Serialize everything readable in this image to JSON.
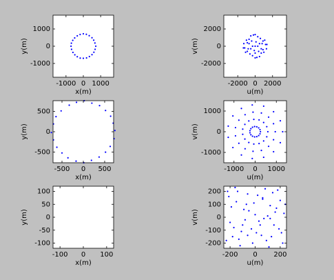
{
  "chart_data": [
    {
      "type": "scatter",
      "xlabel": "x(m)",
      "ylabel": "y(m)",
      "color": "#0000ff",
      "xlim": [
        -1750,
        1750
      ],
      "ylim": [
        -1800,
        1800
      ],
      "xticks": [
        -1000,
        0,
        1000
      ],
      "yticks": [
        -1000,
        0,
        1000
      ],
      "x": [
        720,
        670,
        600,
        500,
        340,
        175,
        0,
        -185,
        -350,
        -500,
        -610,
        -690,
        -710,
        -680,
        -600,
        -490,
        -350,
        -180,
        0,
        185,
        350,
        500,
        610,
        680
      ],
      "y": [
        0,
        185,
        350,
        490,
        610,
        690,
        720,
        680,
        600,
        480,
        340,
        175,
        0,
        -180,
        -360,
        -500,
        -610,
        -690,
        -700,
        -680,
        -600,
        -490,
        -350,
        -180
      ]
    },
    {
      "type": "scatter",
      "xlabel": "u(m)",
      "ylabel": "v(m)",
      "color": "#0000ff",
      "xlim": [
        -3600,
        3600
      ],
      "ylim": [
        -3600,
        3600
      ],
      "xticks": [
        -2000,
        0,
        2000
      ],
      "yticks": [
        -2000,
        0,
        2000
      ],
      "x": [
        0,
        500,
        -500,
        900,
        -900,
        1200,
        -1200,
        300,
        -300,
        700,
        -700,
        1000,
        -1000,
        200,
        -200,
        600,
        -600,
        1300,
        -1300,
        0,
        0,
        400,
        -400,
        800,
        -800,
        1100,
        -1100,
        100,
        -100,
        500,
        -500,
        900,
        -900,
        0,
        300,
        -300,
        700,
        -700,
        1350,
        -1350
      ],
      "y": [
        0,
        300,
        -300,
        600,
        -600,
        200,
        -200,
        1100,
        -1100,
        -800,
        800,
        -700,
        700,
        -1300,
        1300,
        900,
        -900,
        -300,
        300,
        1350,
        -1350,
        -600,
        600,
        300,
        -300,
        700,
        -700,
        500,
        -500,
        -1200,
        1200,
        -400,
        400,
        -800,
        0,
        0,
        -300,
        300,
        200,
        -200
      ]
    },
    {
      "type": "scatter",
      "xlabel": "x(m)",
      "ylabel": "y(m)",
      "color": "#0000ff",
      "xlim": [
        -710,
        710
      ],
      "ylim": [
        -760,
        760
      ],
      "xticks": [
        -500,
        0,
        500
      ],
      "yticks": [
        -500,
        0,
        500
      ],
      "x": [
        740,
        700,
        640,
        520,
        380,
        200,
        20,
        -160,
        -330,
        -520,
        -640,
        -700,
        -750,
        -700,
        -620,
        -500,
        -360,
        -170,
        10,
        190,
        370,
        520,
        630,
        720
      ],
      "y": [
        30,
        210,
        380,
        520,
        640,
        700,
        760,
        720,
        650,
        510,
        370,
        190,
        -20,
        -200,
        -380,
        -520,
        -640,
        -720,
        -760,
        -700,
        -620,
        -500,
        -360,
        -170
      ]
    },
    {
      "type": "scatter",
      "xlabel": "u(m)",
      "ylabel": "v(m)",
      "color": "#0000ff",
      "xlim": [
        -1480,
        1480
      ],
      "ylim": [
        -1500,
        1500
      ],
      "xticks": [
        -1000,
        0,
        1000
      ],
      "yticks": [
        -1000,
        0,
        1000
      ],
      "x": [
        1300,
        1188,
        870,
        402,
        -137,
        -650,
        -1052,
        -1271,
        -1271,
        -1052,
        -650,
        -137,
        402,
        870,
        1188,
        950,
        868,
        636,
        294,
        -100,
        -475,
        -769,
        -929,
        -929,
        -769,
        -475,
        -100,
        294,
        636,
        868,
        600,
        548,
        401,
        185,
        -63,
        -300,
        -485,
        -587,
        -587,
        -485,
        -300,
        -63,
        185,
        401,
        548,
        250,
        229,
        167,
        77,
        -26,
        -125,
        -202,
        -245,
        -245,
        -202,
        -125,
        -26,
        77,
        167,
        229
      ],
      "y": [
        0,
        529,
        966,
        1236,
        1294,
        1126,
        764,
        270,
        -270,
        -764,
        -1126,
        -1294,
        -1236,
        -966,
        -529,
        0,
        387,
        706,
        903,
        945,
        823,
        559,
        198,
        -198,
        -559,
        -823,
        -945,
        -903,
        -706,
        -387,
        0,
        244,
        446,
        571,
        597,
        520,
        353,
        125,
        -125,
        -353,
        -520,
        -597,
        -571,
        -446,
        -244,
        0,
        102,
        186,
        238,
        249,
        217,
        147,
        52,
        -52,
        -147,
        -217,
        -249,
        -238,
        -186,
        -102
      ]
    },
    {
      "type": "scatter",
      "xlabel": "x(m)",
      "ylabel": "y(m)",
      "color": "#0000ff",
      "xlim": [
        -130,
        130
      ],
      "ylim": [
        -120,
        120
      ],
      "xticks": [
        -100,
        0,
        100
      ],
      "yticks": [
        -100,
        -50,
        0,
        50,
        100
      ],
      "x": [],
      "y": []
    },
    {
      "type": "scatter",
      "xlabel": "u(m)",
      "ylabel": "v(m)",
      "color": "#0000ff",
      "xlim": [
        -250,
        250
      ],
      "ylim": [
        -240,
        240
      ],
      "xticks": [
        -200,
        0,
        200
      ],
      "yticks": [
        -200,
        -100,
        0,
        100,
        200
      ],
      "x": [
        -220,
        -180,
        -150,
        -120,
        -90,
        -60,
        -30,
        0,
        30,
        60,
        90,
        120,
        150,
        180,
        210,
        -200,
        -160,
        -110,
        -70,
        -20,
        20,
        70,
        110,
        160,
        200,
        -230,
        -190,
        -140,
        -100,
        -50,
        50,
        100,
        140,
        190,
        230,
        -210,
        -130,
        -80,
        -10,
        40,
        80,
        130,
        170,
        220,
        -170,
        -60,
        10,
        60,
        120,
        240
      ],
      "y": [
        200,
        -150,
        120,
        -220,
        60,
        180,
        -90,
        20,
        -30,
        150,
        -180,
        90,
        -60,
        210,
        -120,
        -40,
        230,
        -110,
        100,
        -200,
        170,
        -10,
        -230,
        40,
        130,
        -180,
        80,
        200,
        -60,
        50,
        -140,
        10,
        190,
        -90,
        30,
        160,
        -170,
        -20,
        110,
        -60,
        220,
        -150,
        70,
        -200,
        -80,
        -140,
        -120,
        140,
        -10,
        100
      ]
    }
  ]
}
